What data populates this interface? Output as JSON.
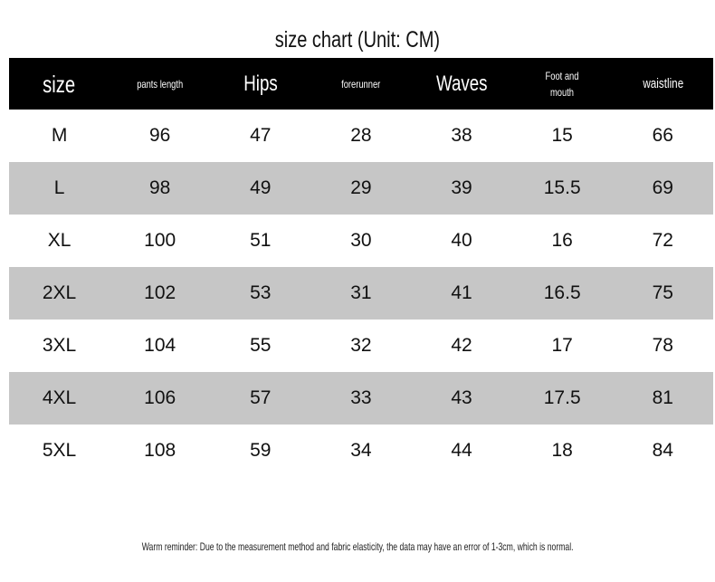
{
  "title": "size chart  (Unit: CM)",
  "headers": [
    "size",
    "pants length",
    "Hips",
    "forerunner",
    "Waves",
    "Foot and mouth",
    "waistline"
  ],
  "rows": [
    [
      "M",
      "96",
      "47",
      "28",
      "38",
      "15",
      "66"
    ],
    [
      "L",
      "98",
      "49",
      "29",
      "39",
      "15.5",
      "69"
    ],
    [
      "XL",
      "100",
      "51",
      "30",
      "40",
      "16",
      "72"
    ],
    [
      "2XL",
      "102",
      "53",
      "31",
      "41",
      "16.5",
      "75"
    ],
    [
      "3XL",
      "104",
      "55",
      "32",
      "42",
      "17",
      "78"
    ],
    [
      "4XL",
      "106",
      "57",
      "33",
      "43",
      "17.5",
      "81"
    ],
    [
      "5XL",
      "108",
      "59",
      "34",
      "44",
      "18",
      "84"
    ]
  ],
  "note": "Warm reminder: Due to the measurement method and fabric elasticity, the data may have an error of 1-3cm, which is normal.",
  "colors": {
    "header_bg": "#000000",
    "stripe": "#c6c6c6"
  }
}
